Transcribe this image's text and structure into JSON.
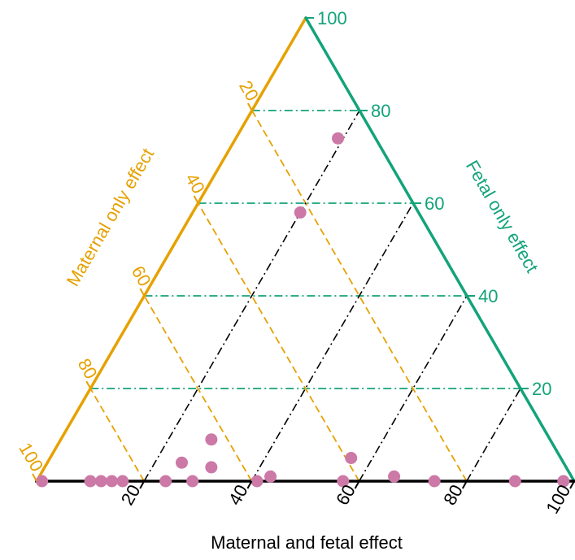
{
  "chart_data": {
    "type": "scatter",
    "subtype": "ternary",
    "axes": {
      "bottom": {
        "label": "Maternal and fetal effect",
        "ticks": [
          "20",
          "40",
          "60",
          "80",
          "100"
        ],
        "color": "#000000"
      },
      "left": {
        "label": "Maternal only effect",
        "ticks": [
          "20",
          "40",
          "60",
          "80",
          "100"
        ],
        "color": "#e6a100"
      },
      "right": {
        "label": "Fetal only effect",
        "ticks": [
          "20",
          "40",
          "60",
          "80",
          "100"
        ],
        "color": "#13a37a"
      }
    },
    "grid": true,
    "point_color": "#cc79a7",
    "points": [
      {
        "maternal_fetal": 1,
        "fetal": 0
      },
      {
        "maternal_fetal": 10,
        "fetal": 0
      },
      {
        "maternal_fetal": 12,
        "fetal": 0
      },
      {
        "maternal_fetal": 14,
        "fetal": 0
      },
      {
        "maternal_fetal": 16,
        "fetal": 0
      },
      {
        "maternal_fetal": 24,
        "fetal": 0
      },
      {
        "maternal_fetal": 29,
        "fetal": 0
      },
      {
        "maternal_fetal": 41,
        "fetal": 0
      },
      {
        "maternal_fetal": 43,
        "fetal": 1
      },
      {
        "maternal_fetal": 57,
        "fetal": 0
      },
      {
        "maternal_fetal": 66,
        "fetal": 1
      },
      {
        "maternal_fetal": 74,
        "fetal": 0
      },
      {
        "maternal_fetal": 89,
        "fetal": 0
      },
      {
        "maternal_fetal": 98,
        "fetal": 0
      },
      {
        "maternal_fetal": 25,
        "fetal": 4
      },
      {
        "maternal_fetal": 31,
        "fetal": 3
      },
      {
        "maternal_fetal": 28,
        "fetal": 9
      },
      {
        "maternal_fetal": 56,
        "fetal": 5
      },
      {
        "maternal_fetal": 19,
        "fetal": 74
      },
      {
        "maternal_fetal": 20,
        "fetal": 58
      }
    ]
  }
}
